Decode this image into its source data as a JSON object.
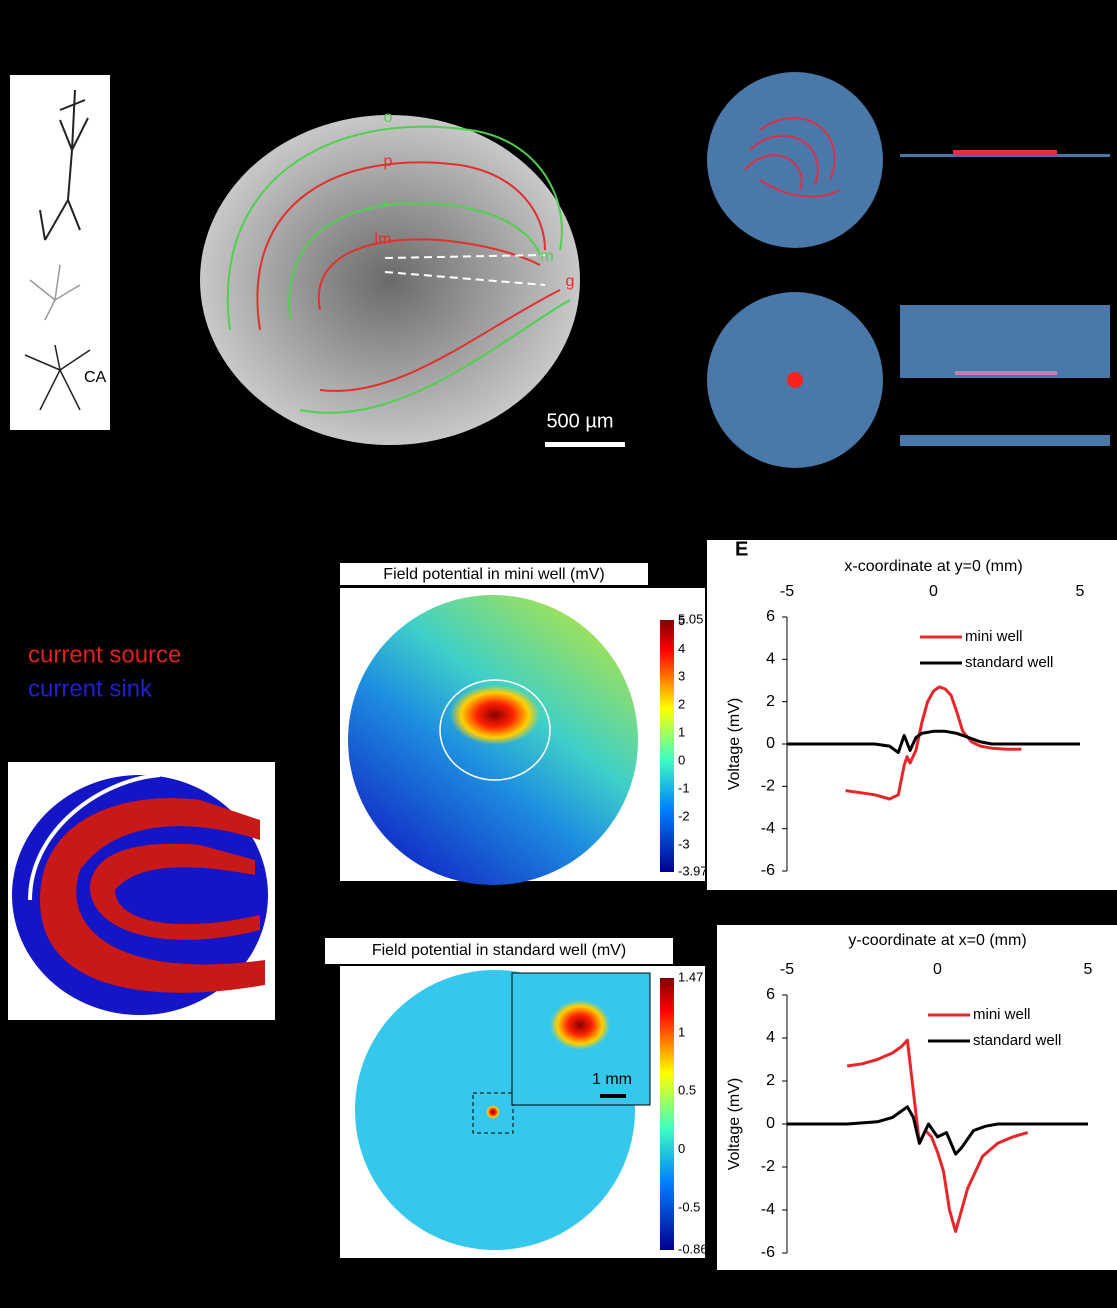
{
  "panel_label": "E",
  "slice_labels": [
    "o",
    "p",
    "r",
    "lm",
    "m",
    "g"
  ],
  "neuron_label": "CA",
  "scale_bar": "500 µm",
  "source_sink_legend": [
    "current source",
    "current sink"
  ],
  "heatmaps": [
    {
      "title": "Field potential in mini well (mV)",
      "colorbar_ticks": [
        5.05,
        5,
        4,
        3,
        2,
        1,
        0,
        -1,
        -2,
        -3,
        -3.97
      ]
    },
    {
      "title": "Field potential in standard well (mV)",
      "colorbar_ticks": [
        1.47,
        1,
        0.5,
        0,
        -0.5,
        -0.86
      ],
      "inset_scale": "1 mm"
    }
  ],
  "chart_data": [
    {
      "type": "line",
      "title": "x-coordinate at y=0 (mm)",
      "y_label": "Voltage (mV)",
      "xlim": [
        -5,
        5
      ],
      "xticks": [
        -5,
        0,
        5
      ],
      "ylim": [
        -6,
        6
      ],
      "yticks": [
        -6,
        -4,
        -2,
        0,
        2,
        4,
        6
      ],
      "legend": "upper right",
      "series": [
        {
          "name": "mini well",
          "color": "#e8262a",
          "x": [
            -3,
            -2.5,
            -2,
            -1.5,
            -1.2,
            -1.0,
            -0.9,
            -0.8,
            -0.6,
            -0.4,
            -0.2,
            0,
            0.2,
            0.4,
            0.6,
            0.8,
            1.0,
            1.3,
            1.6,
            2,
            2.5,
            3
          ],
          "values": [
            -2.2,
            -2.3,
            -2.4,
            -2.6,
            -2.4,
            -1.0,
            -0.6,
            -0.9,
            -0.3,
            1.0,
            2.0,
            2.5,
            2.7,
            2.6,
            2.3,
            1.5,
            0.6,
            0.1,
            -0.1,
            -0.2,
            -0.25,
            -0.25
          ]
        },
        {
          "name": "standard well",
          "color": "#000000",
          "x": [
            -5,
            -3,
            -2,
            -1.5,
            -1.2,
            -1.0,
            -0.8,
            -0.6,
            -0.4,
            0,
            0.4,
            0.8,
            1.2,
            1.6,
            2,
            3,
            5
          ],
          "values": [
            0,
            0,
            0,
            -0.1,
            -0.4,
            0.4,
            -0.3,
            0.3,
            0.5,
            0.6,
            0.6,
            0.5,
            0.3,
            0.1,
            0,
            0,
            0
          ]
        }
      ]
    },
    {
      "type": "line",
      "title": "y-coordinate at x=0 (mm)",
      "y_label": "Voltage (mV)",
      "xlim": [
        -5,
        5
      ],
      "xticks": [
        -5,
        0,
        5
      ],
      "ylim": [
        -6,
        6
      ],
      "yticks": [
        -6,
        -4,
        -2,
        0,
        2,
        4,
        6
      ],
      "legend": "upper right",
      "series": [
        {
          "name": "mini well",
          "color": "#e8262a",
          "x": [
            -3,
            -2.5,
            -2,
            -1.5,
            -1.2,
            -1.0,
            -0.8,
            -0.6,
            -0.4,
            -0.2,
            0,
            0.2,
            0.4,
            0.6,
            0.8,
            1.0,
            1.5,
            2,
            2.5,
            3
          ],
          "values": [
            2.7,
            2.8,
            3.0,
            3.3,
            3.6,
            3.9,
            1.5,
            -0.9,
            -0.3,
            -0.6,
            -1.3,
            -2.2,
            -4.0,
            -5.0,
            -4.0,
            -3.0,
            -1.5,
            -0.9,
            -0.6,
            -0.4
          ]
        },
        {
          "name": "standard well",
          "color": "#000000",
          "x": [
            -5,
            -3,
            -2,
            -1.5,
            -1.0,
            -0.8,
            -0.6,
            -0.3,
            0,
            0.3,
            0.6,
            0.8,
            1.2,
            1.6,
            2,
            3,
            5
          ],
          "values": [
            0,
            0,
            0.1,
            0.3,
            0.8,
            0.3,
            -0.9,
            0.0,
            -0.6,
            -0.4,
            -1.4,
            -1.1,
            -0.3,
            -0.1,
            0,
            0,
            0
          ]
        }
      ]
    }
  ]
}
